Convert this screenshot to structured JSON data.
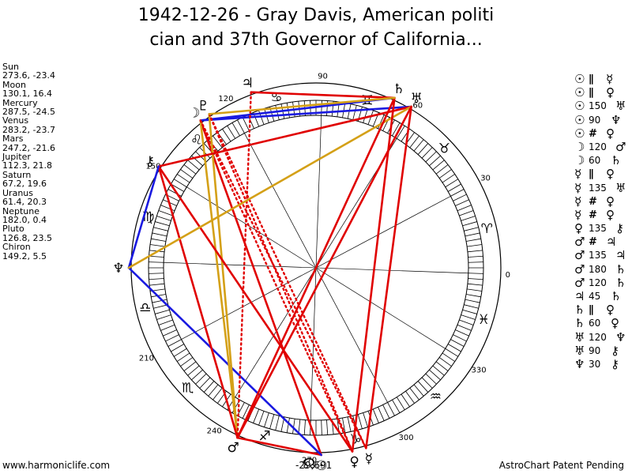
{
  "chart": {
    "title_line1": "1942-12-26 - Gray Davis, American politi",
    "title_line2": "cian and 37th Governor of California...",
    "ascendant_readout": "-29,691"
  },
  "planets": [
    {
      "key": "sun",
      "name": "Sun",
      "glyph": "☉",
      "position": "273.6, -23.4",
      "lon": 273.6,
      "color": "#000000"
    },
    {
      "key": "moon",
      "name": "Moon",
      "glyph": "☽",
      "position": "130.1, 16.4",
      "lon": 130.1,
      "color": "#000000"
    },
    {
      "key": "mercury",
      "name": "Mercury",
      "glyph": "☿",
      "position": "287.5, -24.5",
      "lon": 287.5,
      "color": "#000000"
    },
    {
      "key": "venus",
      "name": "Venus",
      "glyph": "♀",
      "position": "283.2, -23.7",
      "lon": 283.2,
      "color": "#000000"
    },
    {
      "key": "mars",
      "name": "Mars",
      "glyph": "♂",
      "position": "247.2, -21.6",
      "lon": 247.2,
      "color": "#000000"
    },
    {
      "key": "jupiter",
      "name": "Jupiter",
      "glyph": "♃",
      "position": "112.3, 21.8",
      "lon": 112.3,
      "color": "#000000"
    },
    {
      "key": "saturn",
      "name": "Saturn",
      "glyph": "♄",
      "position": "67.2, 19.6",
      "lon": 67.2,
      "color": "#000000"
    },
    {
      "key": "uranus",
      "name": "Uranus",
      "glyph": "♅",
      "position": "61.4, 20.3",
      "lon": 61.4,
      "color": "#000000"
    },
    {
      "key": "neptune",
      "name": "Neptune",
      "glyph": "♆",
      "position": "182.0, 0.4",
      "lon": 182.0,
      "color": "#000000"
    },
    {
      "key": "pluto",
      "name": "Pluto",
      "glyph": "♇",
      "position": "126.8, 23.5",
      "lon": 126.8,
      "color": "#000000"
    },
    {
      "key": "chiron",
      "name": "Chiron",
      "glyph": "⚷",
      "position": "149.2, 5.5",
      "lon": 149.2,
      "color": "#000000"
    }
  ],
  "wheel": {
    "ascendant_longitude": 182,
    "degree_labels": [
      {
        "text": "0",
        "lon": 0
      },
      {
        "text": "30",
        "lon": 30
      },
      {
        "text": "60",
        "lon": 60
      },
      {
        "text": "90",
        "lon": 90
      },
      {
        "text": "120",
        "lon": 120
      },
      {
        "text": "150",
        "lon": 150
      },
      {
        "text": "210",
        "lon": 210
      },
      {
        "text": "240",
        "lon": 240
      },
      {
        "text": "270",
        "lon": 270
      },
      {
        "text": "300",
        "lon": 300
      },
      {
        "text": "330",
        "lon": 330
      }
    ],
    "signs": [
      {
        "glyph": "♈",
        "name": "aries"
      },
      {
        "glyph": "♉",
        "name": "taurus"
      },
      {
        "glyph": "♊",
        "name": "gemini"
      },
      {
        "glyph": "♋",
        "name": "cancer"
      },
      {
        "glyph": "♌",
        "name": "leo"
      },
      {
        "glyph": "♍",
        "name": "virgo"
      },
      {
        "glyph": "♎",
        "name": "libra"
      },
      {
        "glyph": "♏",
        "name": "scorpio"
      },
      {
        "glyph": "♐",
        "name": "sagittarius"
      },
      {
        "glyph": "♑",
        "name": "capricorn"
      },
      {
        "glyph": "♒",
        "name": "aquarius"
      },
      {
        "glyph": "♓",
        "name": "pisces"
      }
    ],
    "colors": {
      "ring": "#000000",
      "hard": "#e00000",
      "soft": "#1a1ae0",
      "minor": "#d4a017",
      "weak": "#e00000"
    }
  },
  "aspect_lines": [
    {
      "a": "sun",
      "b": "moon",
      "style": "solid",
      "color": "hard"
    },
    {
      "a": "sun",
      "b": "mars",
      "style": "solid",
      "color": "hard"
    },
    {
      "a": "sun",
      "b": "neptune",
      "style": "solid",
      "color": "soft"
    },
    {
      "a": "moon",
      "b": "saturn",
      "style": "solid",
      "color": "soft"
    },
    {
      "a": "moon",
      "b": "uranus",
      "style": "solid",
      "color": "soft"
    },
    {
      "a": "moon",
      "b": "mars",
      "style": "solid",
      "color": "minor"
    },
    {
      "a": "moon",
      "b": "mercury",
      "style": "dotted",
      "color": "weak"
    },
    {
      "a": "moon",
      "b": "venus",
      "style": "dotted",
      "color": "weak"
    },
    {
      "a": "pluto",
      "b": "mars",
      "style": "solid",
      "color": "minor"
    },
    {
      "a": "pluto",
      "b": "venus",
      "style": "dotted",
      "color": "weak"
    },
    {
      "a": "pluto",
      "b": "mercury",
      "style": "dotted",
      "color": "weak"
    },
    {
      "a": "jupiter",
      "b": "mars",
      "style": "dotted",
      "color": "weak"
    },
    {
      "a": "jupiter",
      "b": "saturn",
      "style": "solid",
      "color": "hard"
    },
    {
      "a": "chiron",
      "b": "uranus",
      "style": "solid",
      "color": "hard"
    },
    {
      "a": "chiron",
      "b": "mars",
      "style": "solid",
      "color": "hard"
    },
    {
      "a": "chiron",
      "b": "venus",
      "style": "solid",
      "color": "hard"
    },
    {
      "a": "chiron",
      "b": "neptune",
      "style": "solid",
      "color": "soft"
    },
    {
      "a": "neptune",
      "b": "uranus",
      "style": "solid",
      "color": "minor"
    },
    {
      "a": "mars",
      "b": "uranus",
      "style": "solid",
      "color": "hard"
    },
    {
      "a": "mars",
      "b": "saturn",
      "style": "solid",
      "color": "hard"
    },
    {
      "a": "saturn",
      "b": "venus",
      "style": "solid",
      "color": "hard"
    },
    {
      "a": "uranus",
      "b": "mercury",
      "style": "solid",
      "color": "hard"
    },
    {
      "a": "saturn",
      "b": "pluto",
      "style": "solid",
      "color": "minor"
    }
  ],
  "aspects": [
    {
      "p1": "☉",
      "sym": "∥",
      "p2": "☿"
    },
    {
      "p1": "☉",
      "sym": "∥",
      "p2": "♀"
    },
    {
      "p1": "☉",
      "sym": "150",
      "p2": "♅"
    },
    {
      "p1": "☉",
      "sym": "90",
      "p2": "♆"
    },
    {
      "p1": "☉",
      "sym": "#",
      "p2": "♀"
    },
    {
      "p1": "☽",
      "sym": "120",
      "p2": "♂"
    },
    {
      "p1": "☽",
      "sym": "60",
      "p2": "♄"
    },
    {
      "p1": "☿",
      "sym": "∥",
      "p2": "♀"
    },
    {
      "p1": "☿",
      "sym": "135",
      "p2": "♅"
    },
    {
      "p1": "☿",
      "sym": "#",
      "p2": "♀"
    },
    {
      "p1": "☿",
      "sym": "#",
      "p2": "♀"
    },
    {
      "p1": "♀",
      "sym": "135",
      "p2": "⚷"
    },
    {
      "p1": "♂",
      "sym": "#",
      "p2": "♃"
    },
    {
      "p1": "♂",
      "sym": "135",
      "p2": "♃"
    },
    {
      "p1": "♂",
      "sym": "180",
      "p2": "♄"
    },
    {
      "p1": "♂",
      "sym": "120",
      "p2": "♄"
    },
    {
      "p1": "♃",
      "sym": "45",
      "p2": "♄"
    },
    {
      "p1": "♄",
      "sym": "∥",
      "p2": "♀"
    },
    {
      "p1": "♄",
      "sym": "60",
      "p2": "♀"
    },
    {
      "p1": "♅",
      "sym": "120",
      "p2": "♆"
    },
    {
      "p1": "♅",
      "sym": "90",
      "p2": "⚷"
    },
    {
      "p1": "♆",
      "sym": "30",
      "p2": "⚷"
    }
  ],
  "footer": {
    "left": "www.harmoniclife.com",
    "right": "AstroChart Patent Pending"
  }
}
